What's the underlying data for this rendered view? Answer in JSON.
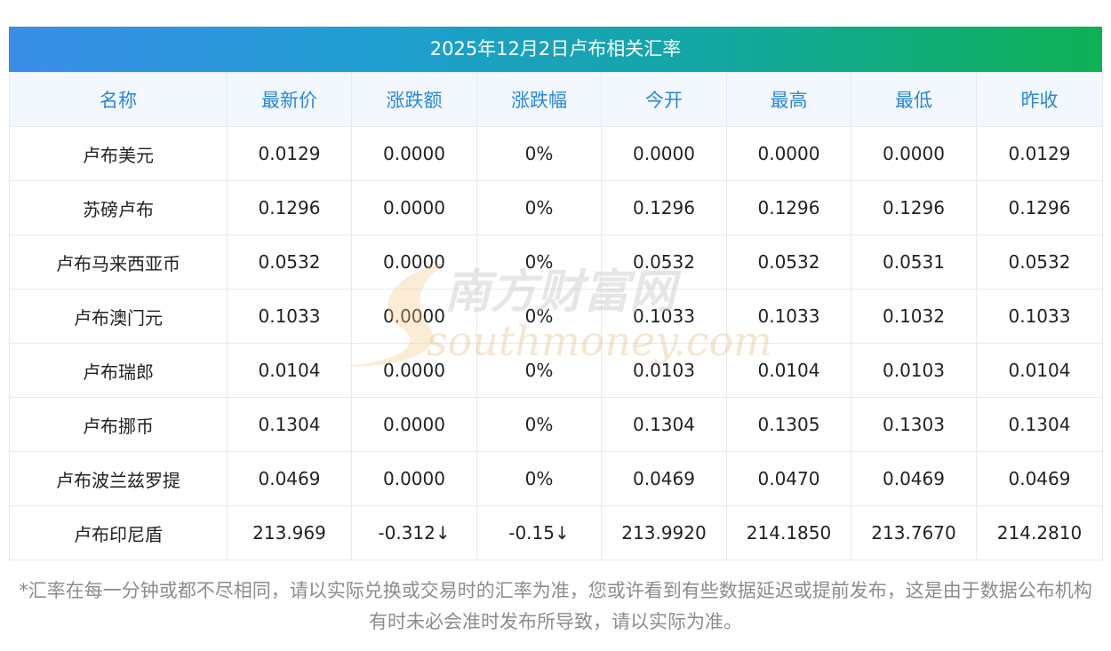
{
  "title": "2025年12月2日卢布相关汇率",
  "columns": [
    "名称",
    "最新价",
    "涨跌额",
    "涨跌幅",
    "今开",
    "最高",
    "最低",
    "昨收"
  ],
  "rows": [
    {
      "name": "卢布美元",
      "latest": "0.0129",
      "change": "0.0000",
      "pct": "0%",
      "open": "0.0000",
      "high": "0.0000",
      "low": "0.0000",
      "prev": "0.0129"
    },
    {
      "name": "苏磅卢布",
      "latest": "0.1296",
      "change": "0.0000",
      "pct": "0%",
      "open": "0.1296",
      "high": "0.1296",
      "low": "0.1296",
      "prev": "0.1296"
    },
    {
      "name": "卢布马来西亚币",
      "latest": "0.0532",
      "change": "0.0000",
      "pct": "0%",
      "open": "0.0532",
      "high": "0.0532",
      "low": "0.0531",
      "prev": "0.0532"
    },
    {
      "name": "卢布澳门元",
      "latest": "0.1033",
      "change": "0.0000",
      "pct": "0%",
      "open": "0.1033",
      "high": "0.1033",
      "low": "0.1032",
      "prev": "0.1033"
    },
    {
      "name": "卢布瑞郎",
      "latest": "0.0104",
      "change": "0.0000",
      "pct": "0%",
      "open": "0.0103",
      "high": "0.0104",
      "low": "0.0103",
      "prev": "0.0104"
    },
    {
      "name": "卢布挪币",
      "latest": "0.1304",
      "change": "0.0000",
      "pct": "0%",
      "open": "0.1304",
      "high": "0.1305",
      "low": "0.1303",
      "prev": "0.1304"
    },
    {
      "name": "卢布波兰兹罗提",
      "latest": "0.0469",
      "change": "0.0000",
      "pct": "0%",
      "open": "0.0469",
      "high": "0.0470",
      "low": "0.0469",
      "prev": "0.0469"
    },
    {
      "name": "卢布印尼盾",
      "latest": "213.969",
      "change": "-0.312↓",
      "pct": "-0.15↓",
      "open": "213.9920",
      "high": "214.1850",
      "low": "213.7670",
      "prev": "214.2810"
    }
  ],
  "colors": {
    "header_text": "#2b86dc",
    "title_gradient_start": "#3a8ee8",
    "title_gradient_end": "#0db154",
    "highlight_green": "#1a8a2a"
  },
  "watermark": {
    "cn": "南方财富网",
    "en": "southmoney.com"
  },
  "note": "*汇率在每一分钟或都不尽相同，请以实际兑换或交易时的汇率为准，您或许看到有些数据延迟或提前发布，这是由于数据公布机构有时未必会准时发布所导致，请以实际为准。"
}
